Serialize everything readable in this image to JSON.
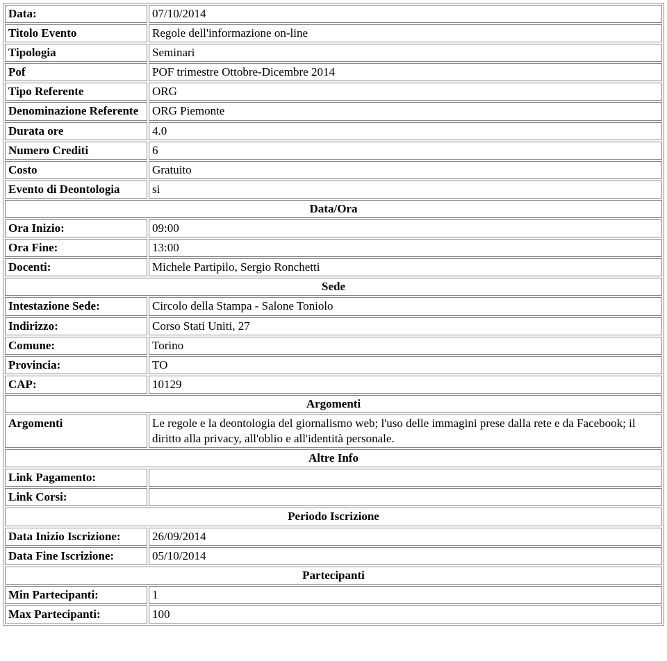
{
  "labels": {
    "data": "Data:",
    "titolo": "Titolo Evento",
    "tipologia": "Tipologia",
    "pof": "Pof",
    "tipoRef": "Tipo Referente",
    "denomRef": "Denominazione Referente",
    "durata": "Durata ore",
    "crediti": "Numero Crediti",
    "costo": "Costo",
    "deont": "Evento di Deontologia",
    "oraInizio": "Ora Inizio:",
    "oraFine": "Ora Fine:",
    "docenti": "Docenti:",
    "intSede": "Intestazione Sede:",
    "indirizzo": "Indirizzo:",
    "comune": "Comune:",
    "provincia": "Provincia:",
    "cap": "CAP:",
    "argomenti": "Argomenti",
    "linkPag": "Link Pagamento:",
    "linkCorsi": "Link Corsi:",
    "dataInizioIsc": "Data Inizio Iscrizione:",
    "dataFineIsc": "Data Fine Iscrizione:",
    "minPart": "Min Partecipanti:",
    "maxPart": "Max Partecipanti:"
  },
  "sections": {
    "dataOra": "Data/Ora",
    "sede": "Sede",
    "argomenti": "Argomenti",
    "altreInfo": "Altre Info",
    "periodoIsc": "Periodo Iscrizione",
    "partecipanti": "Partecipanti"
  },
  "values": {
    "data": "07/10/2014",
    "titolo": "Regole dell'informazione on-line",
    "tipologia": "Seminari",
    "pof": "POF trimestre Ottobre-Dicembre 2014",
    "tipoRef": "ORG",
    "denomRef": "ORG Piemonte",
    "durata": "4.0",
    "crediti": "6",
    "costo": "Gratuito",
    "deont": "si",
    "oraInizio": "09:00",
    "oraFine": "13:00",
    "docenti": "Michele Partipilo, Sergio Ronchetti",
    "intSede": "Circolo della Stampa - Salone Toniolo",
    "indirizzo": "Corso Stati Uniti, 27",
    "comune": "Torino",
    "provincia": "TO",
    "cap": "10129",
    "argomenti": "Le regole e la deontologia del giornalismo web; l'uso delle immagini prese dalla rete e da Facebook; il diritto alla privacy, all'oblio e all'identità personale.",
    "linkPag": "",
    "linkCorsi": "",
    "dataInizioIsc": "26/09/2014",
    "dataFineIsc": "05/10/2014",
    "minPart": "1",
    "maxPart": "100"
  }
}
